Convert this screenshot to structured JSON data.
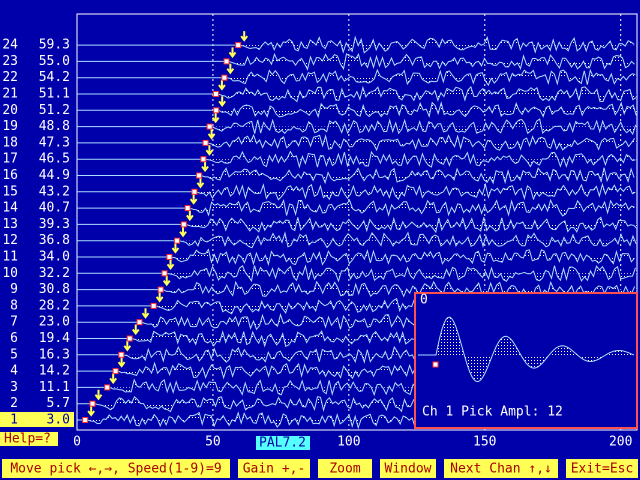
{
  "channels": [
    {
      "label": "1",
      "pick": "3.0"
    },
    {
      "label": "2",
      "pick": "5.7"
    },
    {
      "label": "3",
      "pick": "11.1"
    },
    {
      "label": "4",
      "pick": "14.2"
    },
    {
      "label": "5",
      "pick": "16.3"
    },
    {
      "label": "6",
      "pick": "19.4"
    },
    {
      "label": "7",
      "pick": "23.0"
    },
    {
      "label": "8",
      "pick": "28.2"
    },
    {
      "label": "9",
      "pick": "30.8"
    },
    {
      "label": "10",
      "pick": "32.2"
    },
    {
      "label": "11",
      "pick": "34.0"
    },
    {
      "label": "12",
      "pick": "36.8"
    },
    {
      "label": "13",
      "pick": "39.3"
    },
    {
      "label": "14",
      "pick": "40.7"
    },
    {
      "label": "15",
      "pick": "43.2"
    },
    {
      "label": "16",
      "pick": "44.9"
    },
    {
      "label": "17",
      "pick": "46.5"
    },
    {
      "label": "18",
      "pick": "47.3"
    },
    {
      "label": "19",
      "pick": "48.8"
    },
    {
      "label": "20",
      "pick": "51.2"
    },
    {
      "label": "21",
      "pick": "51.1"
    },
    {
      "label": "22",
      "pick": "54.2"
    },
    {
      "label": "23",
      "pick": "55.0"
    },
    {
      "label": "24",
      "pick": "59.3"
    }
  ],
  "axis": {
    "xlim": [
      0,
      206
    ],
    "xticks": [
      0,
      50,
      100,
      150,
      200
    ]
  },
  "file": "PAL7.2",
  "help": "Help=?",
  "inset": {
    "label": "0",
    "text": "Ch 1 Pick Ampl: 12"
  },
  "menu": [
    "Move pick ←,→, Speed(1-9)=9",
    "Gain +,-",
    "Zoom",
    "Window",
    "Next Chan ↑,↓",
    "Exit=Esc"
  ]
}
